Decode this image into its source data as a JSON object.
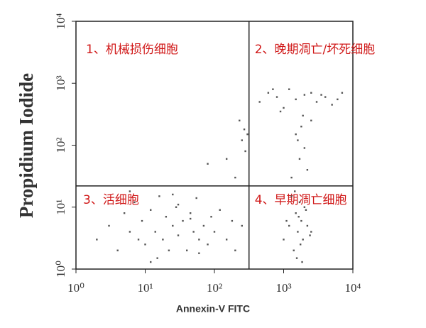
{
  "chart_data": {
    "type": "scatter",
    "x_label": "Annexin-V FITC",
    "y_label": "Propidium Iodide",
    "log_x": true,
    "log_y": true,
    "color": "#555555",
    "xlim": [
      1,
      10000
    ],
    "ylim": [
      1,
      10000
    ],
    "xticks": [
      {
        "value": 1,
        "label": "10⁰"
      },
      {
        "value": 10,
        "label": "10¹"
      },
      {
        "value": 100,
        "label": "10²"
      },
      {
        "value": 1000,
        "label": "10³"
      },
      {
        "value": 10000,
        "label": "10⁴"
      }
    ],
    "yticks": [
      {
        "value": 1,
        "label": "10⁰"
      },
      {
        "value": 10,
        "label": "10¹"
      },
      {
        "value": 100,
        "label": "10²"
      },
      {
        "value": 1000,
        "label": "10³"
      },
      {
        "value": 10000,
        "label": "10⁴"
      }
    ],
    "gates": {
      "x": 316,
      "y": 22
    },
    "annotations": [
      "1、机械损伤细胞",
      "2、晚期凋亡/坏死细胞",
      "3、活细胞",
      "4、早期凋亡细胞"
    ],
    "x": [
      2,
      3,
      4,
      5,
      6,
      7,
      8,
      9,
      10,
      12,
      14,
      16,
      18,
      20,
      22,
      25,
      28,
      30,
      35,
      40,
      45,
      50,
      55,
      60,
      70,
      80,
      90,
      100,
      120,
      150,
      180,
      200,
      250,
      6,
      15,
      30,
      60,
      12,
      25,
      45,
      1000,
      1200,
      1400,
      1500,
      1600,
      1700,
      1800,
      1900,
      2000,
      2200,
      2500,
      1300,
      1550,
      1750,
      1650,
      1450,
      1850,
      2100,
      1100,
      2400,
      450,
      600,
      800,
      1000,
      1200,
      1500,
      2000,
      2500,
      3000,
      4000,
      5000,
      6000,
      7000,
      700,
      900,
      1800,
      1600,
      2000,
      1700,
      2200,
      1900,
      1500,
      2500,
      3500,
      1300,
      80,
      150,
      200,
      230,
      250,
      270,
      280,
      300
    ],
    "values": [
      3,
      5,
      2,
      8,
      4,
      12,
      3,
      6,
      2.5,
      9,
      4,
      15,
      3,
      7,
      2,
      5,
      10,
      3.5,
      6,
      2,
      8,
      4,
      14,
      3,
      5,
      2.5,
      7,
      4,
      9,
      3,
      6,
      2,
      5,
      18,
      1.5,
      11,
      1.8,
      1.3,
      16,
      6.5,
      3,
      5,
      2,
      8,
      4,
      12,
      6,
      3,
      10,
      5,
      4,
      15,
      1.5,
      2.5,
      7,
      18,
      1.3,
      9,
      6,
      3.5,
      500,
      700,
      600,
      400,
      800,
      550,
      650,
      700,
      500,
      600,
      450,
      550,
      700,
      800,
      350,
      200,
      120,
      90,
      60,
      40,
      300,
      150,
      250,
      650,
      30,
      50,
      60,
      30,
      250,
      120,
      180,
      80,
      150
    ]
  }
}
